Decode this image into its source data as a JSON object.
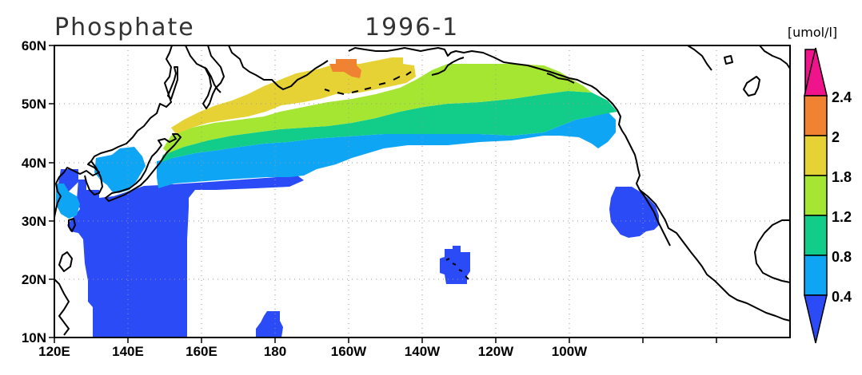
{
  "title": {
    "variable": "Phosphate",
    "period": "1996-1"
  },
  "colorbar": {
    "unit": "[umol/l]",
    "labels": [
      "0.4",
      "0.8",
      "1.2",
      "1.8",
      "2",
      "2.4"
    ],
    "colors": [
      "#2a4bf5",
      "#0fa5f5",
      "#12cc8a",
      "#a4e632",
      "#e6d234",
      "#f08232",
      "#f0148c"
    ]
  },
  "axes": {
    "x_ticks": [
      "120E",
      "140E",
      "160E",
      "180",
      "160W",
      "140W",
      "120W",
      "100W"
    ],
    "y_ticks": [
      "10N",
      "20N",
      "30N",
      "40N",
      "50N",
      "60N"
    ]
  },
  "legend_values": [
    0.4,
    0.8,
    1.2,
    1.8,
    2,
    2.4
  ]
}
